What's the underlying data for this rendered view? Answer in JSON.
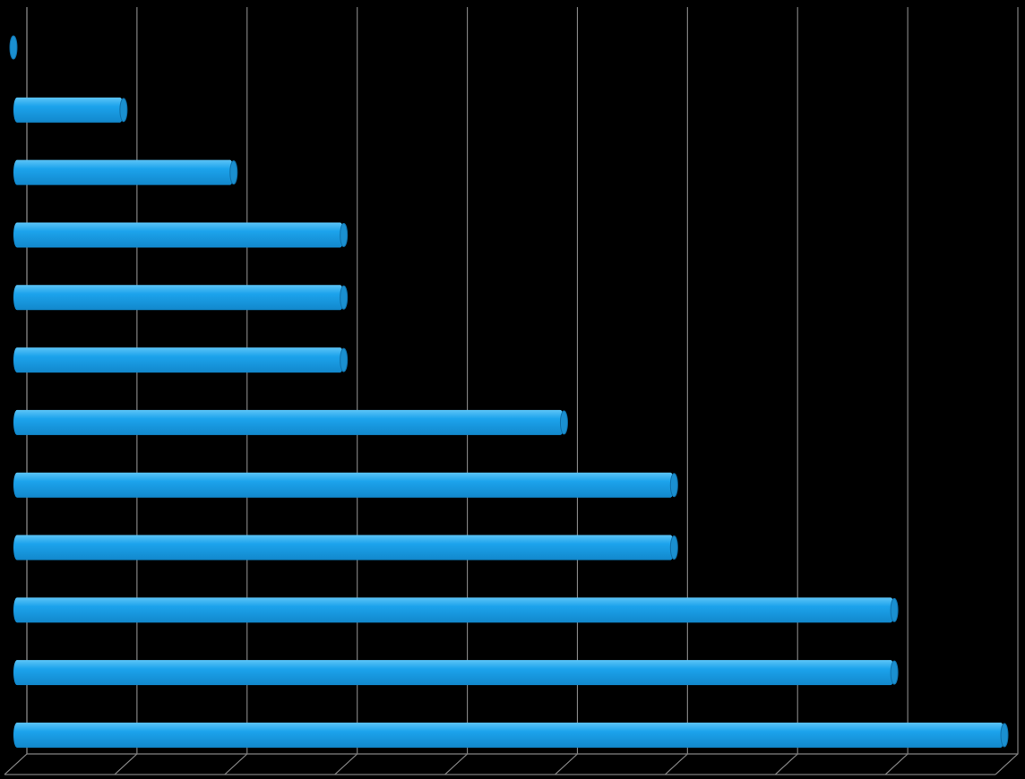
{
  "chart_data": {
    "type": "bar",
    "orientation": "horizontal",
    "values": [
      0,
      1,
      2,
      3,
      3,
      3,
      5,
      6,
      6,
      8,
      8,
      9
    ],
    "color": "#1ca3ec",
    "xlim": [
      0,
      9
    ],
    "xticks": [
      0,
      1,
      2,
      3,
      4,
      5,
      6,
      7,
      8,
      9
    ],
    "grid": true
  }
}
